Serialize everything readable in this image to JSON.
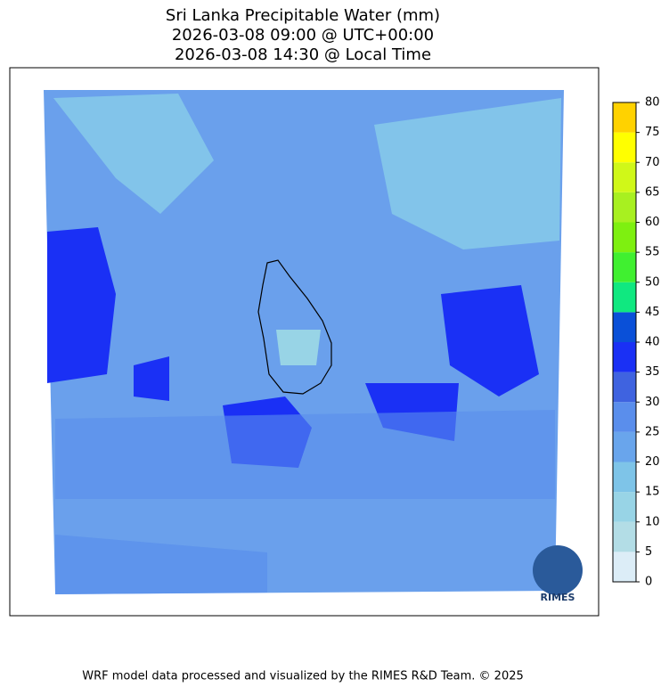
{
  "title": [
    "Sri Lanka Precipitable Water (mm)",
    "2026-03-08 09:00 @ UTC+00:00",
    "2026-03-08 14:30 @ Local Time"
  ],
  "colorbar": {
    "lim": [
      0,
      80
    ],
    "ticks": [
      0,
      5,
      10,
      15,
      20,
      25,
      30,
      35,
      40,
      45,
      50,
      55,
      60,
      65,
      70,
      75,
      80
    ],
    "colors": [
      "#dcedf7",
      "#b3dde6",
      "#98d4e6",
      "#7ec4e8",
      "#69a5ec",
      "#5a8eec",
      "#3f63e0",
      "#1a30f5",
      "#0a50d8",
      "#10e880",
      "#40f030",
      "#7ef010",
      "#a8f020",
      "#d0f818",
      "#ffff00",
      "#ffd200"
    ]
  },
  "logo": "RIMES",
  "footer": "WRF model data processed and visualized by the RIMES R&D Team. © 2025"
}
